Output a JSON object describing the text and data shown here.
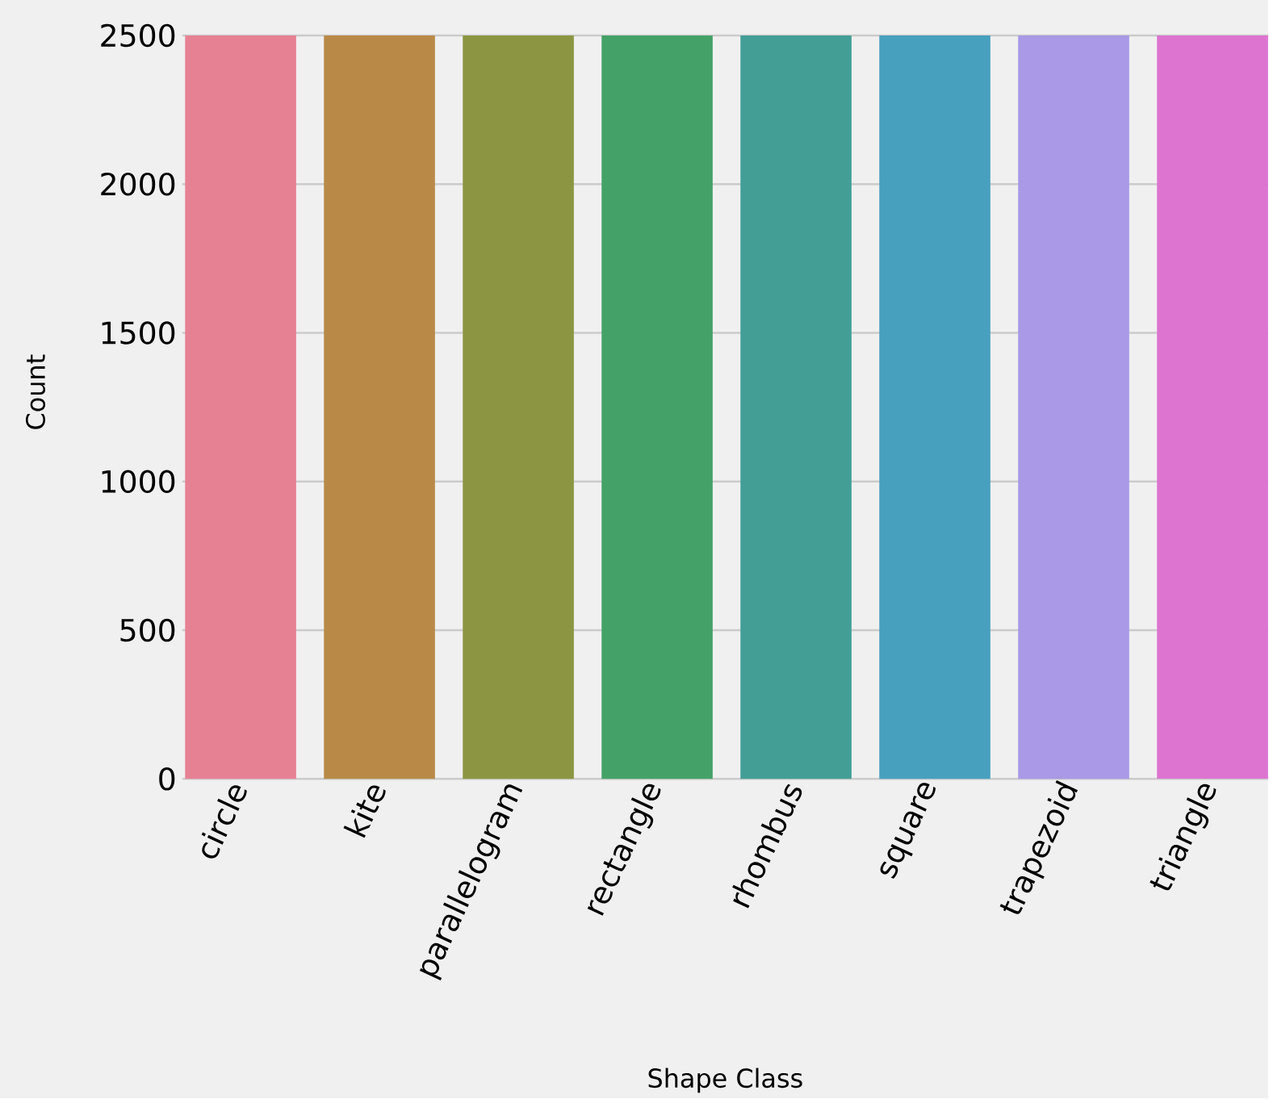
{
  "chart_data": {
    "type": "bar",
    "xlabel": "Shape Class",
    "ylabel": "Count",
    "categories": [
      "circle",
      "kite",
      "parallelogram",
      "rectangle",
      "rhombus",
      "square",
      "trapezoid",
      "triangle"
    ],
    "values": [
      2500,
      2500,
      2500,
      2500,
      2500,
      2500,
      2500,
      2500
    ],
    "colors": [
      "#e68193",
      "#b98a47",
      "#8c9642",
      "#44a268",
      "#439e96",
      "#48a0bf",
      "#a999e6",
      "#dd74d0"
    ],
    "ylim": [
      0,
      2500
    ],
    "yticks": [
      0,
      500,
      1000,
      1500,
      2000,
      2500
    ],
    "grid": "y"
  }
}
